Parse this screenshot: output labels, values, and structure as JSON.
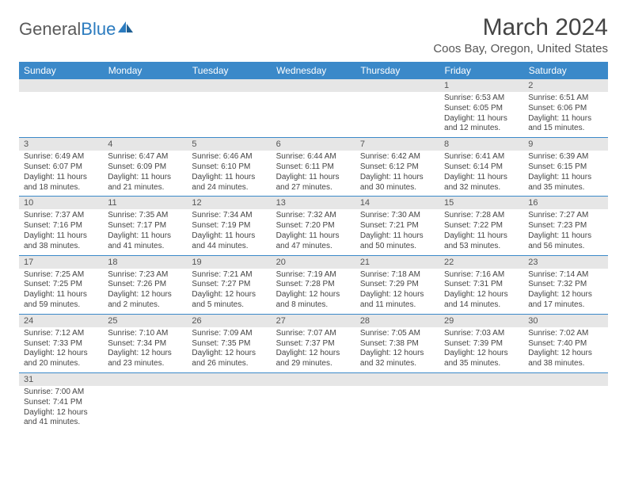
{
  "colors": {
    "header_bg": "#3b89c9",
    "header_text": "#ffffff",
    "daynum_bg": "#e6e6e6",
    "row_border": "#3b89c9",
    "body_text": "#444444",
    "logo_gray": "#5a5a5a",
    "logo_blue": "#2b7bbf",
    "background": "#ffffff"
  },
  "logo": {
    "part1": "General",
    "part2": "Blue"
  },
  "title": "March 2024",
  "location": "Coos Bay, Oregon, United States",
  "weekdays": [
    "Sunday",
    "Monday",
    "Tuesday",
    "Wednesday",
    "Thursday",
    "Friday",
    "Saturday"
  ],
  "labels": {
    "sunrise": "Sunrise:",
    "sunset": "Sunset:",
    "daylight": "Daylight:"
  },
  "weeks": [
    [
      {
        "day": "",
        "sunrise": "",
        "sunset": "",
        "daylight": ""
      },
      {
        "day": "",
        "sunrise": "",
        "sunset": "",
        "daylight": ""
      },
      {
        "day": "",
        "sunrise": "",
        "sunset": "",
        "daylight": ""
      },
      {
        "day": "",
        "sunrise": "",
        "sunset": "",
        "daylight": ""
      },
      {
        "day": "",
        "sunrise": "",
        "sunset": "",
        "daylight": ""
      },
      {
        "day": "1",
        "sunrise": "6:53 AM",
        "sunset": "6:05 PM",
        "daylight": "11 hours and 12 minutes."
      },
      {
        "day": "2",
        "sunrise": "6:51 AM",
        "sunset": "6:06 PM",
        "daylight": "11 hours and 15 minutes."
      }
    ],
    [
      {
        "day": "3",
        "sunrise": "6:49 AM",
        "sunset": "6:07 PM",
        "daylight": "11 hours and 18 minutes."
      },
      {
        "day": "4",
        "sunrise": "6:47 AM",
        "sunset": "6:09 PM",
        "daylight": "11 hours and 21 minutes."
      },
      {
        "day": "5",
        "sunrise": "6:46 AM",
        "sunset": "6:10 PM",
        "daylight": "11 hours and 24 minutes."
      },
      {
        "day": "6",
        "sunrise": "6:44 AM",
        "sunset": "6:11 PM",
        "daylight": "11 hours and 27 minutes."
      },
      {
        "day": "7",
        "sunrise": "6:42 AM",
        "sunset": "6:12 PM",
        "daylight": "11 hours and 30 minutes."
      },
      {
        "day": "8",
        "sunrise": "6:41 AM",
        "sunset": "6:14 PM",
        "daylight": "11 hours and 32 minutes."
      },
      {
        "day": "9",
        "sunrise": "6:39 AM",
        "sunset": "6:15 PM",
        "daylight": "11 hours and 35 minutes."
      }
    ],
    [
      {
        "day": "10",
        "sunrise": "7:37 AM",
        "sunset": "7:16 PM",
        "daylight": "11 hours and 38 minutes."
      },
      {
        "day": "11",
        "sunrise": "7:35 AM",
        "sunset": "7:17 PM",
        "daylight": "11 hours and 41 minutes."
      },
      {
        "day": "12",
        "sunrise": "7:34 AM",
        "sunset": "7:19 PM",
        "daylight": "11 hours and 44 minutes."
      },
      {
        "day": "13",
        "sunrise": "7:32 AM",
        "sunset": "7:20 PM",
        "daylight": "11 hours and 47 minutes."
      },
      {
        "day": "14",
        "sunrise": "7:30 AM",
        "sunset": "7:21 PM",
        "daylight": "11 hours and 50 minutes."
      },
      {
        "day": "15",
        "sunrise": "7:28 AM",
        "sunset": "7:22 PM",
        "daylight": "11 hours and 53 minutes."
      },
      {
        "day": "16",
        "sunrise": "7:27 AM",
        "sunset": "7:23 PM",
        "daylight": "11 hours and 56 minutes."
      }
    ],
    [
      {
        "day": "17",
        "sunrise": "7:25 AM",
        "sunset": "7:25 PM",
        "daylight": "11 hours and 59 minutes."
      },
      {
        "day": "18",
        "sunrise": "7:23 AM",
        "sunset": "7:26 PM",
        "daylight": "12 hours and 2 minutes."
      },
      {
        "day": "19",
        "sunrise": "7:21 AM",
        "sunset": "7:27 PM",
        "daylight": "12 hours and 5 minutes."
      },
      {
        "day": "20",
        "sunrise": "7:19 AM",
        "sunset": "7:28 PM",
        "daylight": "12 hours and 8 minutes."
      },
      {
        "day": "21",
        "sunrise": "7:18 AM",
        "sunset": "7:29 PM",
        "daylight": "12 hours and 11 minutes."
      },
      {
        "day": "22",
        "sunrise": "7:16 AM",
        "sunset": "7:31 PM",
        "daylight": "12 hours and 14 minutes."
      },
      {
        "day": "23",
        "sunrise": "7:14 AM",
        "sunset": "7:32 PM",
        "daylight": "12 hours and 17 minutes."
      }
    ],
    [
      {
        "day": "24",
        "sunrise": "7:12 AM",
        "sunset": "7:33 PM",
        "daylight": "12 hours and 20 minutes."
      },
      {
        "day": "25",
        "sunrise": "7:10 AM",
        "sunset": "7:34 PM",
        "daylight": "12 hours and 23 minutes."
      },
      {
        "day": "26",
        "sunrise": "7:09 AM",
        "sunset": "7:35 PM",
        "daylight": "12 hours and 26 minutes."
      },
      {
        "day": "27",
        "sunrise": "7:07 AM",
        "sunset": "7:37 PM",
        "daylight": "12 hours and 29 minutes."
      },
      {
        "day": "28",
        "sunrise": "7:05 AM",
        "sunset": "7:38 PM",
        "daylight": "12 hours and 32 minutes."
      },
      {
        "day": "29",
        "sunrise": "7:03 AM",
        "sunset": "7:39 PM",
        "daylight": "12 hours and 35 minutes."
      },
      {
        "day": "30",
        "sunrise": "7:02 AM",
        "sunset": "7:40 PM",
        "daylight": "12 hours and 38 minutes."
      }
    ],
    [
      {
        "day": "31",
        "sunrise": "7:00 AM",
        "sunset": "7:41 PM",
        "daylight": "12 hours and 41 minutes."
      },
      {
        "day": "",
        "sunrise": "",
        "sunset": "",
        "daylight": ""
      },
      {
        "day": "",
        "sunrise": "",
        "sunset": "",
        "daylight": ""
      },
      {
        "day": "",
        "sunrise": "",
        "sunset": "",
        "daylight": ""
      },
      {
        "day": "",
        "sunrise": "",
        "sunset": "",
        "daylight": ""
      },
      {
        "day": "",
        "sunrise": "",
        "sunset": "",
        "daylight": ""
      },
      {
        "day": "",
        "sunrise": "",
        "sunset": "",
        "daylight": ""
      }
    ]
  ]
}
